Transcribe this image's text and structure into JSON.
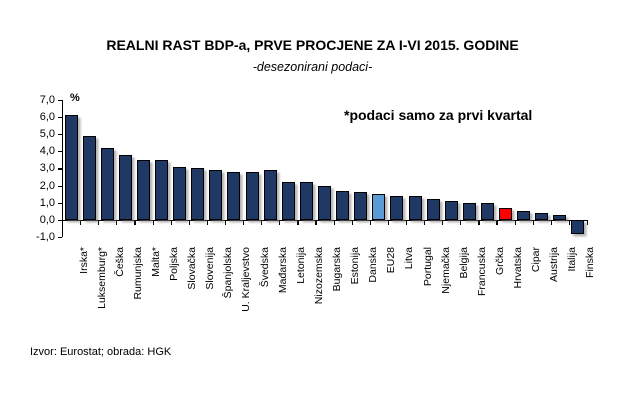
{
  "chart_data": {
    "type": "bar",
    "title": "REALNI RAST BDP-a, PRVE PROCJENE ZA I-VI 2015. GODINE",
    "subtitle": "-desezonirani podaci-",
    "annotation": "*podaci samo za prvi kvartal",
    "unit_label": "%",
    "source": "Izvor: Eurostat; obrada: HGK",
    "categories": [
      "Irska*",
      "Luksemburg*",
      "Češka",
      "Rumunjska",
      "Malta*",
      "Poljska",
      "Slovačka",
      "Slovenija",
      "Španjolska",
      "U. Kraljevstvo",
      "Švedska",
      "Mađarska",
      "Letonija",
      "Nizozemska",
      "Bugarska",
      "Estonija",
      "Danska",
      "EU28",
      "Litva",
      "Portugal",
      "Njemačka",
      "Belgija",
      "Francuska",
      "Grčka",
      "Hrvatska",
      "Cipar",
      "Austrija",
      "Italija",
      "Finska"
    ],
    "values": [
      6.1,
      4.9,
      4.2,
      3.8,
      3.5,
      3.5,
      3.1,
      3.0,
      2.9,
      2.8,
      2.8,
      2.9,
      2.2,
      2.2,
      2.0,
      1.7,
      1.6,
      1.5,
      1.4,
      1.4,
      1.2,
      1.1,
      1.0,
      1.0,
      0.7,
      0.5,
      0.4,
      0.3,
      -0.8
    ],
    "default_bar_color": "#1F3864",
    "special_bars": {
      "EU28": "#5B9BD5",
      "Hrvatska": "#FF0000"
    },
    "y_ticks": [
      "7,0",
      "6,0",
      "5,0",
      "4,0",
      "3,0",
      "2,0",
      "1,0",
      "0,0",
      "-1,0"
    ],
    "ylim": [
      -1.0,
      7.0
    ],
    "grid": false,
    "legend": "none",
    "xlabel": "",
    "ylabel": "%"
  }
}
